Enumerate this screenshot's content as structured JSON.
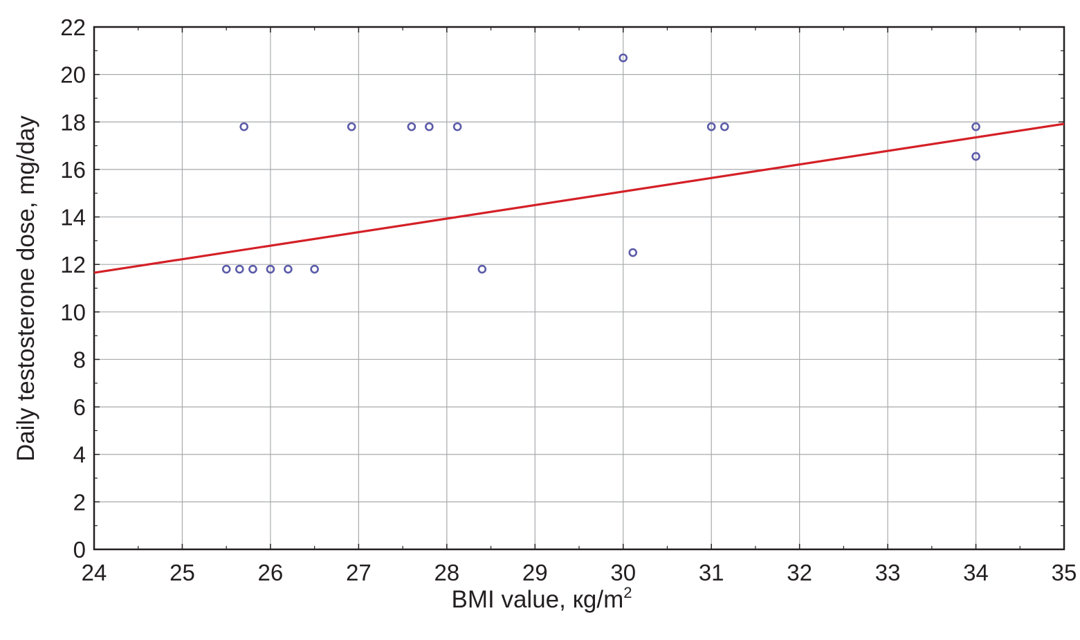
{
  "chart_data": {
    "type": "scatter",
    "title": "",
    "xlabel": "BMI value, кg/m",
    "xlabel_superscript": "2",
    "ylabel": "Daily testosterone dose, mg/day",
    "xlim": [
      24,
      35
    ],
    "ylim": [
      0,
      22
    ],
    "x_ticks": [
      24,
      25,
      26,
      27,
      28,
      29,
      30,
      31,
      32,
      33,
      34,
      35
    ],
    "y_ticks": [
      0,
      2,
      4,
      6,
      8,
      10,
      12,
      14,
      16,
      18,
      20,
      22
    ],
    "grid": true,
    "series": [
      {
        "type": "scatter",
        "color": "#5b5ba8",
        "marker": "open-circle",
        "points": [
          {
            "x": 25.5,
            "y": 11.8
          },
          {
            "x": 25.65,
            "y": 11.8
          },
          {
            "x": 25.8,
            "y": 11.8
          },
          {
            "x": 26.0,
            "y": 11.8
          },
          {
            "x": 26.2,
            "y": 11.8
          },
          {
            "x": 26.5,
            "y": 11.8
          },
          {
            "x": 25.7,
            "y": 17.8
          },
          {
            "x": 26.92,
            "y": 17.8
          },
          {
            "x": 27.6,
            "y": 17.8
          },
          {
            "x": 27.8,
            "y": 17.8
          },
          {
            "x": 28.12,
            "y": 17.8
          },
          {
            "x": 28.4,
            "y": 11.8
          },
          {
            "x": 30.0,
            "y": 20.7
          },
          {
            "x": 30.11,
            "y": 12.5
          },
          {
            "x": 31.0,
            "y": 17.8
          },
          {
            "x": 31.15,
            "y": 17.8
          },
          {
            "x": 34.0,
            "y": 17.8
          },
          {
            "x": 34.0,
            "y": 16.55
          }
        ]
      },
      {
        "type": "line",
        "color": "#d42027",
        "points": [
          {
            "x": 24,
            "y": 11.65
          },
          {
            "x": 35,
            "y": 17.92
          }
        ]
      }
    ]
  }
}
